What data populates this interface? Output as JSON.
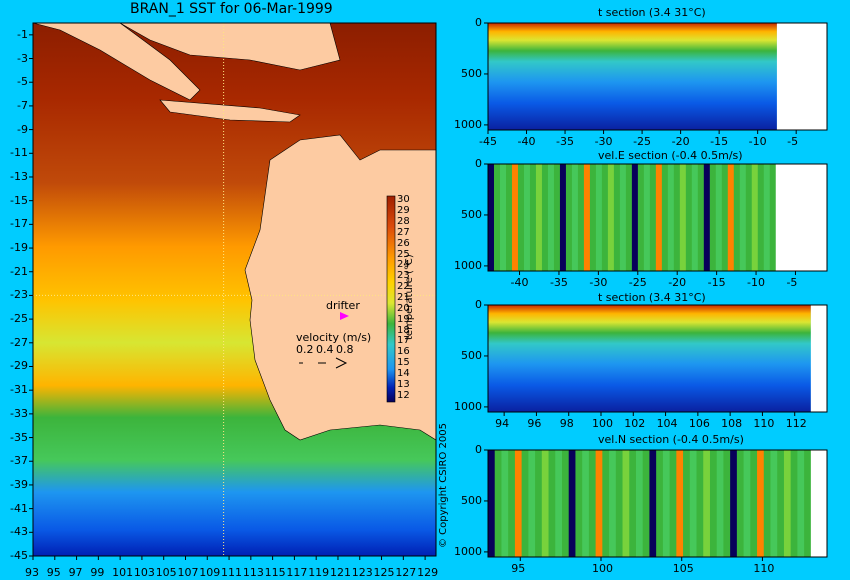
{
  "title": "BRAN_1 SST for 06-Mar-1999",
  "copyright": "© Copyright CSIRO 2005",
  "colors": {
    "background": "#00ccff",
    "land": "#fdcba2",
    "palette": [
      "#08005a",
      "#0020b4",
      "#0a5ae6",
      "#1e96f0",
      "#32c8c8",
      "#3cb43c",
      "#78d23c",
      "#dce632",
      "#ffb400",
      "#ff8200",
      "#dc4b0a",
      "#a01e00"
    ]
  },
  "map_overlay": {
    "drifter_label": "drifter",
    "velocity_label": "velocity (m/s)",
    "velocity_scale": [
      "0.2",
      "0.4",
      "0.8"
    ]
  },
  "chart_data": [
    {
      "type": "heatmap",
      "name": "SST map",
      "x_ticks": [
        "93",
        "95",
        "97",
        "99",
        "101",
        "103",
        "105",
        "107",
        "109",
        "111",
        "113",
        "115",
        "117",
        "119",
        "121",
        "123",
        "125",
        "127",
        "129"
      ],
      "y_ticks": [
        "-1",
        "-3",
        "-5",
        "-7",
        "-9",
        "-11",
        "-13",
        "-15",
        "-17",
        "-19",
        "-21",
        "-23",
        "-25",
        "-27",
        "-29",
        "-31",
        "-33",
        "-35",
        "-37",
        "-39",
        "-41",
        "-43",
        "-45"
      ],
      "xlim": [
        93,
        130
      ],
      "ylim": [
        -45,
        0
      ],
      "colorbar_label": "temperature (°C)",
      "colorbar_ticks": [
        "30",
        "29",
        "28",
        "27",
        "26",
        "25",
        "24",
        "23",
        "22",
        "21",
        "20",
        "19",
        "18",
        "17",
        "16",
        "15",
        "14",
        "13",
        "12"
      ],
      "section_lines": {
        "longitude": 110.5,
        "latitude": -23
      }
    },
    {
      "type": "heatmap",
      "name": "t section latitude",
      "title": "t section (3.4     31°C)",
      "x_ticks": [
        "-45",
        "-40",
        "-35",
        "-30",
        "-25",
        "-20",
        "-15",
        "-10",
        "-5"
      ],
      "y_ticks": [
        "0",
        "500",
        "1000"
      ],
      "xlim": [
        -45,
        -1
      ],
      "ylim": [
        1050,
        0
      ],
      "land_from": -7.5
    },
    {
      "type": "heatmap",
      "name": "vel.E section",
      "title": "vel.E section (-0.4     0.5m/s)",
      "x_ticks": [
        "-40",
        "-35",
        "-30",
        "-25",
        "-20",
        "-15",
        "-10",
        "-5"
      ],
      "y_ticks": [
        "0",
        "500",
        "1000"
      ],
      "xlim": [
        -44,
        -1
      ],
      "ylim": [
        1050,
        0
      ],
      "land_from": -7.5
    },
    {
      "type": "heatmap",
      "name": "t section longitude",
      "title": "t section (3.4     31°C)",
      "x_ticks": [
        "94",
        "96",
        "98",
        "100",
        "102",
        "104",
        "106",
        "108",
        "110",
        "112"
      ],
      "y_ticks": [
        "0",
        "500",
        "1000"
      ],
      "xlim": [
        93,
        114
      ],
      "ylim": [
        1050,
        0
      ],
      "land_from": 113
    },
    {
      "type": "heatmap",
      "name": "vel.N section",
      "title": "vel.N section (-0.4     0.5m/s)",
      "x_ticks": [
        "95",
        "100",
        "105",
        "110"
      ],
      "y_ticks": [
        "0",
        "500",
        "1000"
      ],
      "xlim": [
        93,
        114
      ],
      "ylim": [
        1050,
        0
      ],
      "land_from": 113
    }
  ]
}
